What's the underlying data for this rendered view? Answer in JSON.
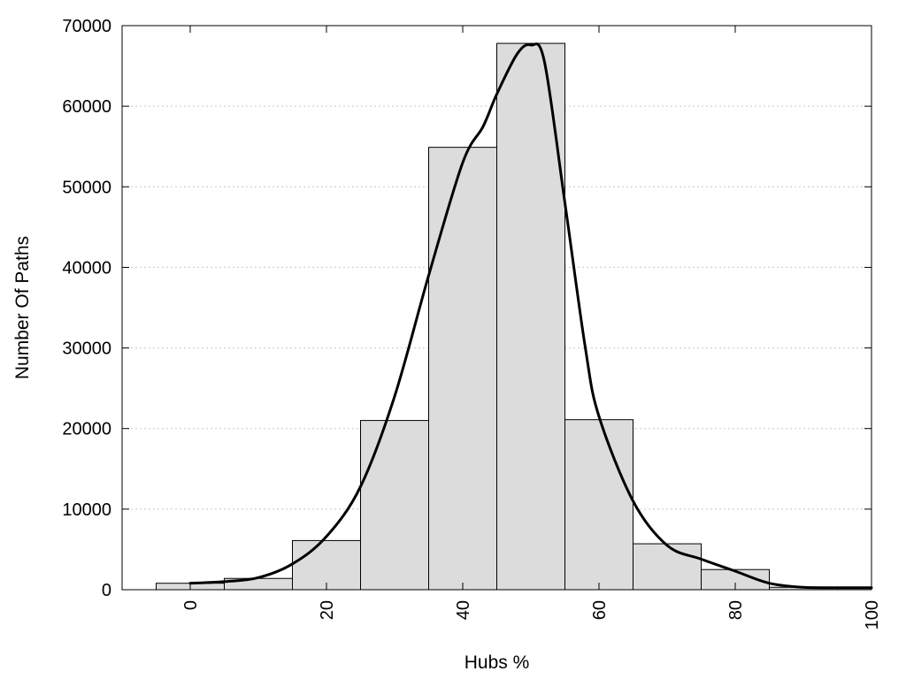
{
  "chart_data": {
    "type": "bar",
    "xlabel": "Hubs %",
    "ylabel": "Number Of Paths",
    "xlim": [
      -10,
      100
    ],
    "ylim": [
      0,
      70000
    ],
    "x_ticks": [
      0,
      20,
      40,
      60,
      80,
      100
    ],
    "y_ticks": [
      0,
      10000,
      20000,
      30000,
      40000,
      50000,
      60000,
      70000
    ],
    "y_grid": true,
    "legend": "none",
    "bar_color": "#dcdcdc",
    "bar_edge_color": "#000000",
    "bins": [
      {
        "x0": -5,
        "x1": 5,
        "value": 800
      },
      {
        "x0": 5,
        "x1": 15,
        "value": 1400
      },
      {
        "x0": 15,
        "x1": 25,
        "value": 6100
      },
      {
        "x0": 25,
        "x1": 35,
        "value": 21000
      },
      {
        "x0": 35,
        "x1": 45,
        "value": 54900
      },
      {
        "x0": 45,
        "x1": 55,
        "value": 67800
      },
      {
        "x0": 55,
        "x1": 65,
        "value": 21100
      },
      {
        "x0": 65,
        "x1": 75,
        "value": 5700
      },
      {
        "x0": 75,
        "x1": 85,
        "value": 2500
      },
      {
        "x0": 85,
        "x1": 95,
        "value": 300
      },
      {
        "x0": 95,
        "x1": 105,
        "value": 300
      }
    ],
    "curve": {
      "x": [
        0,
        5,
        10,
        15,
        20,
        25,
        30,
        35,
        40,
        43,
        45,
        48,
        50,
        52,
        55,
        58,
        60,
        65,
        70,
        75,
        80,
        85,
        90,
        95,
        100
      ],
      "y": [
        800,
        1000,
        1500,
        3200,
        6600,
        12800,
        24000,
        39000,
        53000,
        57500,
        61500,
        66500,
        67600,
        65500,
        48000,
        30000,
        21500,
        11000,
        5500,
        3800,
        2300,
        800,
        300,
        250,
        250
      ]
    }
  }
}
